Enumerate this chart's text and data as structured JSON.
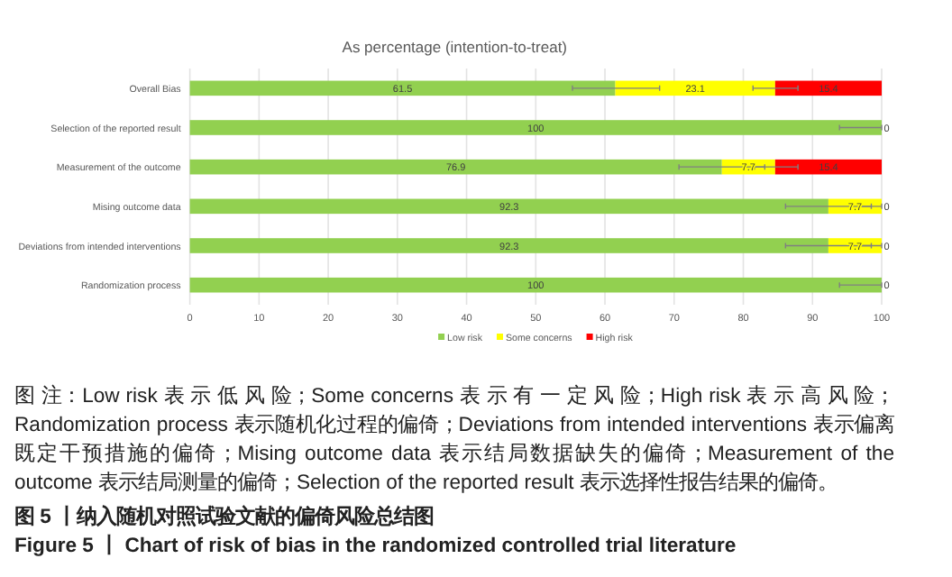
{
  "chart_data": {
    "type": "bar",
    "orientation": "horizontal",
    "stacked": true,
    "title": "As percentage (intention-to-treat)",
    "categories": [
      "Overall Bias",
      "Selection of the reported result",
      "Measurement of the outcome",
      "Mising outcome data",
      "Deviations from intended interventions",
      "Randomization process"
    ],
    "series": [
      {
        "name": "Low risk",
        "color": "#92d050",
        "values": [
          61.5,
          100,
          76.9,
          92.3,
          92.3,
          100
        ],
        "value_labels": [
          "61.5",
          "100",
          "76.9",
          "92.3",
          "92.3",
          "100"
        ],
        "errors": [
          [
            55.3,
            67.9
          ],
          [
            93.9,
            100
          ],
          [
            70.7,
            83.1
          ],
          [
            86.1,
            98.5
          ],
          [
            86.1,
            98.5
          ],
          [
            93.9,
            100
          ]
        ]
      },
      {
        "name": "Some concerns",
        "color": "#ffff00",
        "values": [
          23.1,
          0,
          7.7,
          7.7,
          7.7,
          0
        ],
        "value_labels": [
          "23.1",
          null,
          "7.7",
          "7.7",
          "7.7",
          null
        ],
        "errors": [
          [
            81.4,
            87.9
          ],
          null,
          [
            81.6,
            87.9
          ],
          [
            96.6,
            100
          ],
          [
            96.6,
            100
          ],
          null
        ]
      },
      {
        "name": "High risk",
        "color": "#ff0000",
        "values": [
          15.4,
          0,
          15.4,
          0,
          0,
          0
        ],
        "value_labels": [
          "15.4",
          "0",
          "15.4",
          "0",
          "0",
          "0"
        ]
      }
    ],
    "xlim": [
      0,
      100
    ],
    "xticks": [
      0,
      10,
      20,
      30,
      40,
      50,
      60,
      70,
      80,
      90,
      100
    ],
    "grid": "x",
    "legend": "bottom",
    "annotations": [
      "图 注：Low risk 表 示 低 风 险；Some concerns 表 示 有 一 定 风 险；High risk 表 示 高 风 险；Randomization process 表示随机化过程的偏倚；Deviations from intended interventions 表示偏离既定干预措施的偏倚；Mising outcome data 表示结局数据缺失的偏倚；Measurement of the outcome 表示结局测量的偏倚；Selection of the reported result 表示选择性报告结果的偏倚。",
      "图 5 丨纳入随机对照试验文献的偏倚风险总结图",
      "Figure 5 丨 Chart of risk of bias in the randomized controlled trial literature"
    ]
  }
}
